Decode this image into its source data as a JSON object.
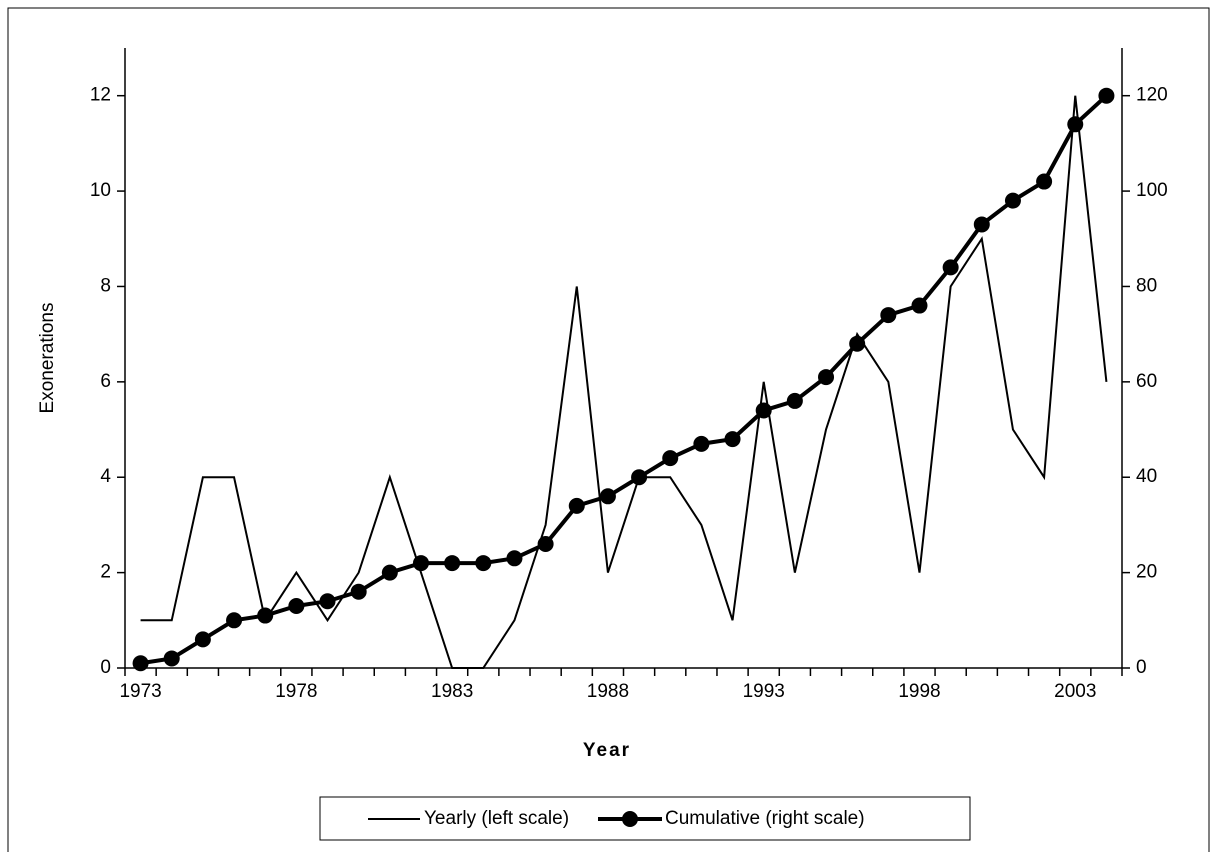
{
  "chart_data": {
    "type": "line",
    "x_label": "Year",
    "y_label": "Exonerations",
    "categories": [
      "1973",
      null,
      null,
      null,
      null,
      "1978",
      null,
      null,
      null,
      null,
      "1983",
      null,
      null,
      null,
      null,
      "1988",
      null,
      null,
      null,
      null,
      "1993",
      null,
      null,
      null,
      null,
      "1998",
      null,
      null,
      null,
      null,
      "2003",
      null
    ],
    "series": [
      {
        "name": "Yearly (left scale)",
        "color": "#000000",
        "values": [
          1,
          1,
          4,
          4,
          1,
          2,
          1,
          2,
          4,
          2,
          0,
          0,
          1,
          3,
          8,
          2,
          4,
          4,
          3,
          1,
          6,
          2,
          5,
          7,
          6,
          2,
          8,
          9,
          5,
          4,
          12,
          6
        ]
      },
      {
        "name": "Cumulative (right scale)",
        "color": "#000000",
        "axis": "y2",
        "values": [
          1,
          2,
          6,
          10,
          11,
          13,
          14,
          16,
          20,
          22,
          22,
          22,
          23,
          26,
          34,
          36,
          40,
          44,
          47,
          48,
          54,
          56,
          61,
          68,
          74,
          76,
          84,
          93,
          98,
          102,
          114,
          120
        ]
      }
    ],
    "ylim": [
      0,
      13
    ],
    "yticks": [
      0,
      2,
      4,
      6,
      8,
      10,
      12
    ],
    "y2lim": [
      0,
      130
    ],
    "y2ticks": [
      0,
      20,
      40,
      60,
      80,
      100,
      120
    ],
    "legend": "bottom"
  }
}
